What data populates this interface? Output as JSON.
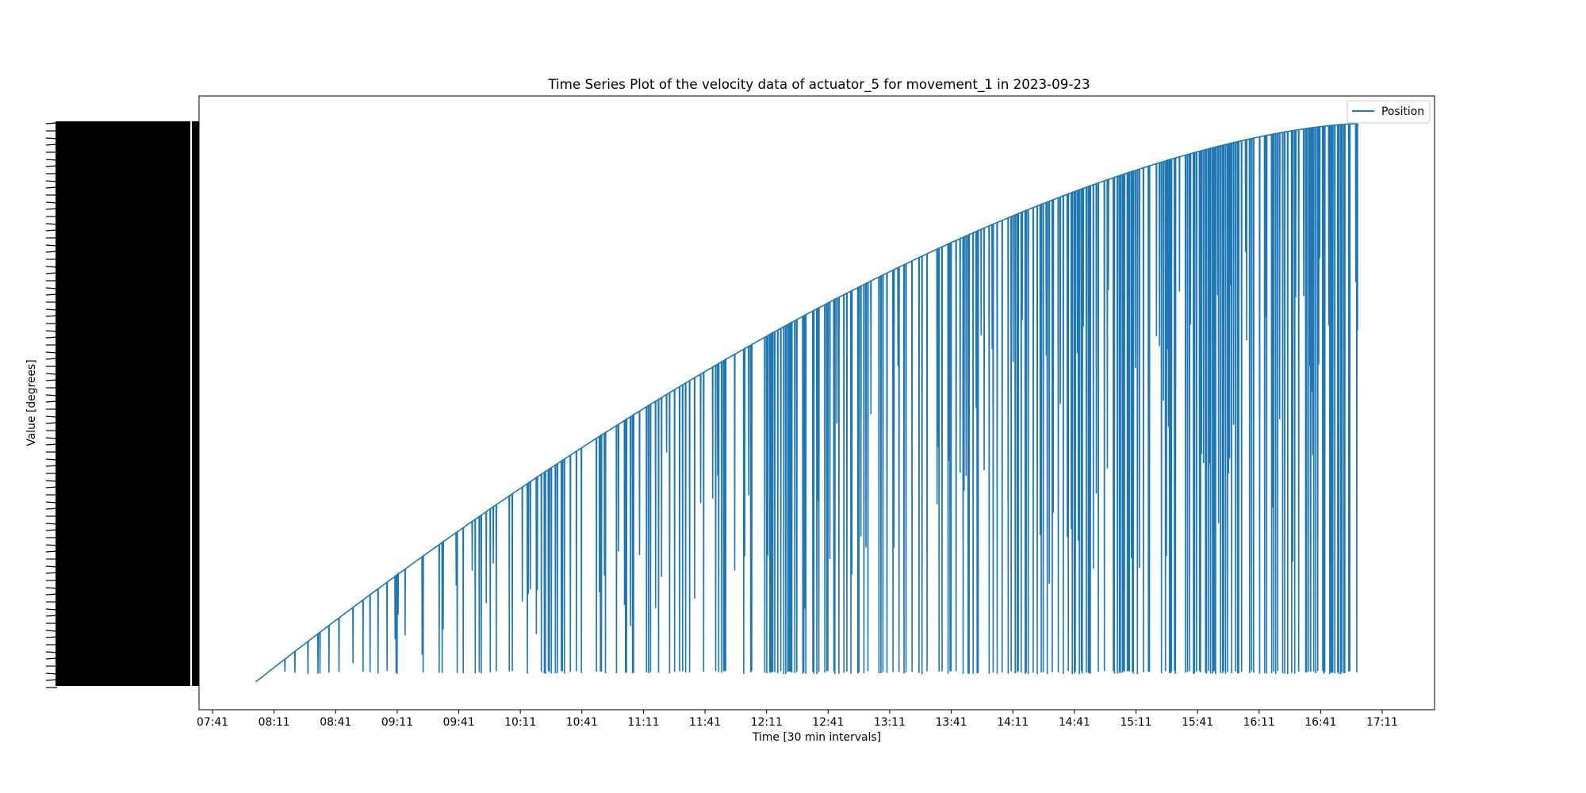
{
  "chart_data": {
    "type": "line",
    "title": "Time Series Plot of the velocity data of actuator_5 for movement_1 in 2023-09-23",
    "xlabel": "Time [30 min intervals]",
    "ylabel": "Value [degrees]",
    "x_ticks": [
      "07:41",
      "08:11",
      "08:41",
      "09:11",
      "09:41",
      "10:11",
      "10:41",
      "11:11",
      "11:41",
      "12:11",
      "12:41",
      "13:11",
      "13:41",
      "14:11",
      "14:41",
      "15:11",
      "15:41",
      "16:11",
      "16:41",
      "17:11"
    ],
    "xlim": [
      "07:41",
      "17:21"
    ],
    "grid": false,
    "legend_position": "top-right",
    "series": [
      {
        "name": "Position",
        "color": "#1f77b4",
        "x_start": "08:02",
        "x_end": "16:59",
        "envelope_start": 0.0,
        "envelope_end": 1.0,
        "drop_floor": 0.014,
        "final_value": 0.63
      }
    ],
    "y_tick_note": "categorical y-axis: hundreds of overlapping tick labels rendered as a dense black band"
  }
}
